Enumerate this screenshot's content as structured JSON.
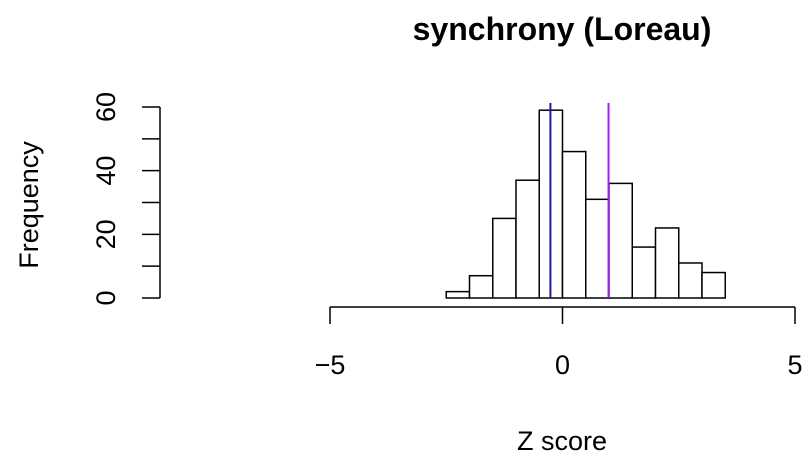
{
  "chart_data": {
    "type": "histogram",
    "title": "synchrony (Loreau)",
    "xlabel": "Z score",
    "ylabel": "Frequency",
    "bins": [
      -2.5,
      -2,
      -1.5,
      -1,
      -0.5,
      0,
      0.5,
      1,
      1.5,
      2,
      2.5,
      3,
      3.5
    ],
    "values": [
      2,
      7,
      25,
      37,
      59,
      46,
      31,
      36,
      16,
      22,
      11,
      8
    ],
    "color": "#ffffff",
    "edgecolor": "#000000",
    "vlines": [
      {
        "x": -0.26,
        "color": "#1c1c9c"
      },
      {
        "x": 0.99,
        "color": "#a020f0"
      }
    ],
    "xlim": [
      -5,
      5
    ],
    "xticks": [
      {
        "value": -5,
        "label": "−5"
      },
      0,
      5
    ],
    "ylim": [
      0,
      60
    ],
    "yticks": [
      0,
      20,
      40,
      60
    ],
    "yminor_ticks": [
      10,
      30,
      50
    ]
  }
}
